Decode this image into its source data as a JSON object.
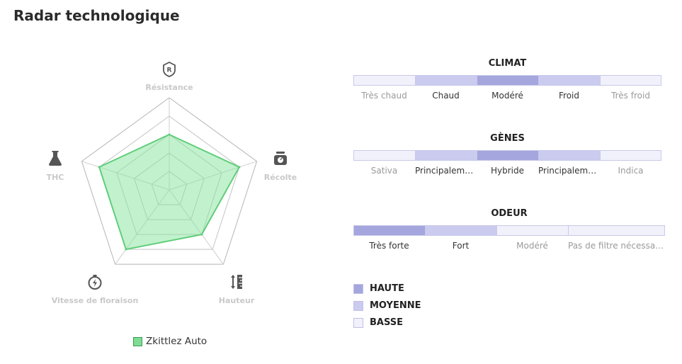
{
  "title": "Radar technologique",
  "colors": {
    "high": "#a4a6dd",
    "medium": "#cacbef",
    "low": "#f1f1fb",
    "radar_fill": "#86e39c",
    "radar_stroke": "#5fce7a",
    "axis_label": "#c9c9c9",
    "icon": "#555555"
  },
  "chart_data": [
    {
      "type": "radar",
      "axes": [
        {
          "label": "Résistance",
          "icon": "shield-r-icon"
        },
        {
          "label": "Récolte",
          "icon": "scale-icon"
        },
        {
          "label": "Hauteur",
          "icon": "height-ruler-icon"
        },
        {
          "label": "Vitesse de floraison",
          "icon": "stopwatch-icon"
        },
        {
          "label": "THC",
          "icon": "flask-icon"
        }
      ],
      "series": [
        {
          "name": "Zkittlez Auto",
          "values": [
            3,
            4,
            3,
            4,
            4
          ]
        }
      ],
      "max": 5,
      "levels": 5,
      "legend_position": "bottom"
    }
  ],
  "scales": [
    {
      "title": "CLIMAT",
      "options": [
        "Très chaud",
        "Chaud",
        "Modéré",
        "Froid",
        "Très froid"
      ],
      "levels": [
        "low",
        "medium",
        "high",
        "medium",
        "low"
      ],
      "selected_index": 2
    },
    {
      "title": "GÈNES",
      "options": [
        "Sativa",
        "Principalement Sativa",
        "Hybride",
        "Principalement Indica",
        "Indica"
      ],
      "levels": [
        "low",
        "medium",
        "high",
        "medium",
        "low"
      ],
      "selected_index": 2
    },
    {
      "title": "ODEUR",
      "options": [
        "Très forte",
        "Fort",
        "Modéré",
        "Pas de filtre nécessaire"
      ],
      "levels": [
        "high",
        "medium",
        "low",
        "low"
      ],
      "selected_index": 0
    }
  ],
  "key": [
    {
      "label": "HAUTE",
      "level": "high"
    },
    {
      "label": "MOYENNE",
      "level": "medium"
    },
    {
      "label": "BASSE",
      "level": "low"
    }
  ]
}
